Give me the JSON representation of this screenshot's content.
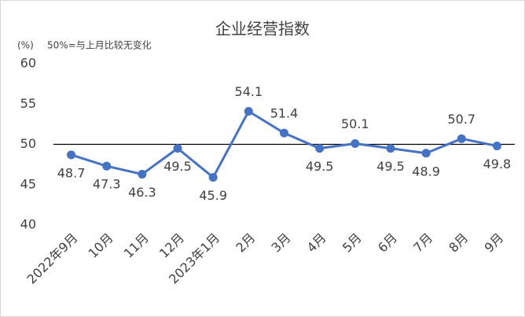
{
  "chart_data": {
    "type": "line",
    "title": "企业经营指数",
    "y_unit": "(%)",
    "annotation": "50%=与上月比较无变化",
    "categories": [
      "2022年9月",
      "10月",
      "11月",
      "12月",
      "2023年1月",
      "2月",
      "3月",
      "4月",
      "5月",
      "6月",
      "7月",
      "8月",
      "9月"
    ],
    "values": [
      48.7,
      47.3,
      46.3,
      49.5,
      45.9,
      54.1,
      51.4,
      49.5,
      50.1,
      49.5,
      48.9,
      50.7,
      49.8
    ],
    "color": "#4472c4",
    "ylim": [
      40,
      60
    ],
    "yticks": [
      40,
      45,
      50,
      55,
      60
    ],
    "reference_line": 50,
    "grid": false
  }
}
